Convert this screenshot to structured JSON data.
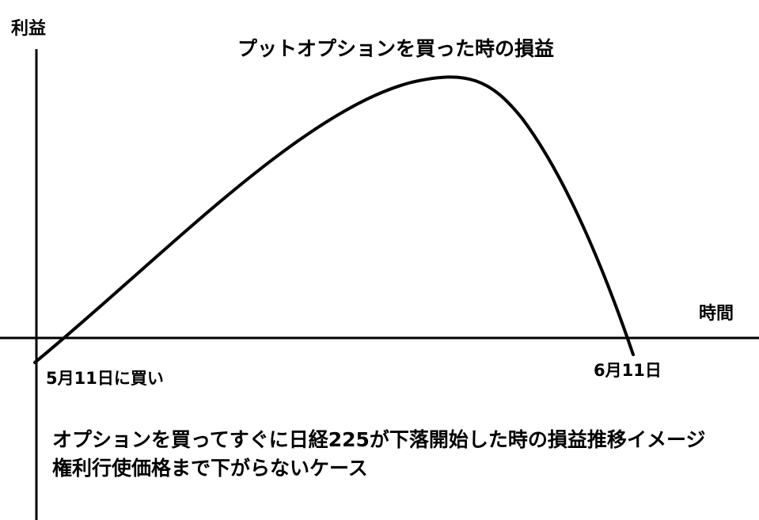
{
  "title": "プットオプションを買った時の損益",
  "y_axis_label": "利益",
  "x_axis_label": "時間",
  "start_label": "5月11日に買い",
  "end_label": "6月11日",
  "caption_line1": "オプションを買ってすぐに日経225が下落開始した時の損益推移イメージ",
  "caption_line2": "権利行使価格まで下がらないケース",
  "colors": {
    "line": "#000000",
    "background": "#ffffff"
  }
}
